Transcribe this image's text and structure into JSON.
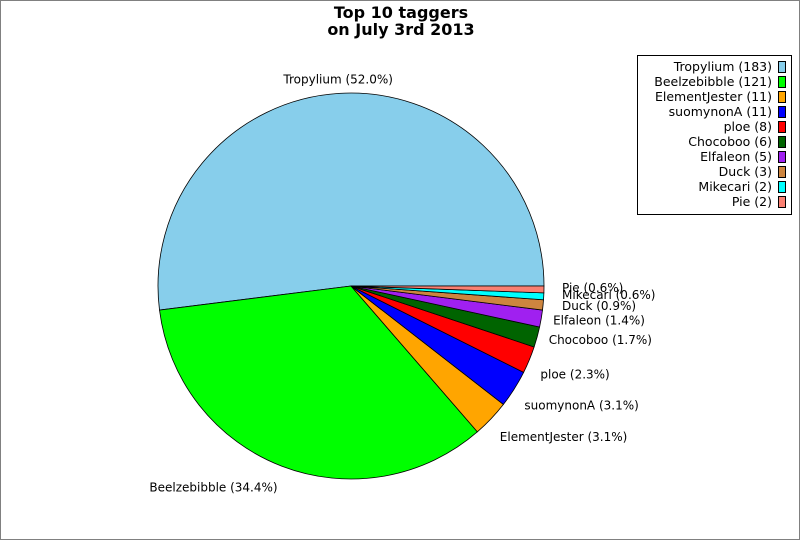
{
  "chart_data": {
    "type": "pie",
    "title_lines": [
      "Top 10 taggers",
      "on July 3rd 2013"
    ],
    "legend_position": "top-right",
    "slices": [
      {
        "name": "Tropylium",
        "value": 183,
        "percent_label": "Tropylium (52.0%)",
        "legend_label": "Tropylium (183)",
        "color": "#87ceeb"
      },
      {
        "name": "Beelzebibble",
        "value": 121,
        "percent_label": "Beelzebibble (34.4%)",
        "legend_label": "Beelzebibble (121)",
        "color": "#00ff00"
      },
      {
        "name": "ElementJester",
        "value": 11,
        "percent_label": "ElementJester (3.1%)",
        "legend_label": "ElementJester (11)",
        "color": "#ffa500"
      },
      {
        "name": "suomynonA",
        "value": 11,
        "percent_label": "suomynonA (3.1%)",
        "legend_label": "suomynonA (11)",
        "color": "#0000ff"
      },
      {
        "name": "ploe",
        "value": 8,
        "percent_label": "ploe (2.3%)",
        "legend_label": "ploe (8)",
        "color": "#ff0000"
      },
      {
        "name": "Chocoboo",
        "value": 6,
        "percent_label": "Chocoboo (1.7%)",
        "legend_label": "Chocoboo (6)",
        "color": "#006400"
      },
      {
        "name": "Elfaleon",
        "value": 5,
        "percent_label": "Elfaleon (1.4%)",
        "legend_label": "Elfaleon (5)",
        "color": "#a020f0"
      },
      {
        "name": "Duck",
        "value": 3,
        "percent_label": "Duck (0.9%)",
        "legend_label": "Duck (3)",
        "color": "#cd853f"
      },
      {
        "name": "Mikecari",
        "value": 2,
        "percent_label": "Mikecari (0.6%)",
        "legend_label": "Mikecari (2)",
        "color": "#00ffff"
      },
      {
        "name": "Pie",
        "value": 2,
        "percent_label": "Pie (0.6%)",
        "legend_label": "Pie (2)",
        "color": "#fa8072"
      }
    ]
  }
}
